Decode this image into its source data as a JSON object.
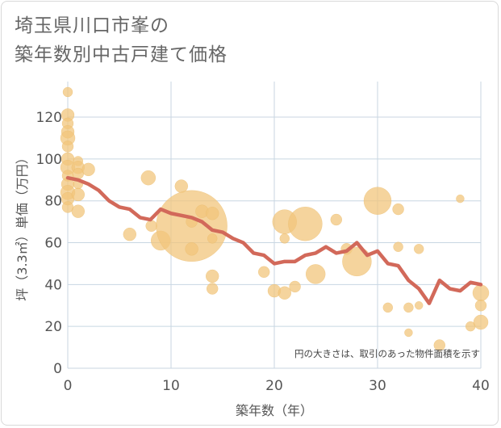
{
  "title_lines": [
    "埼玉県川口市峯の",
    "築年数別中古戸建て価格"
  ],
  "chart_data": {
    "type": "scatter",
    "title": "埼玉県川口市峯の築年数別中古戸建て価格",
    "xlabel": "築年数（年）",
    "ylabel": "坪（3.3㎡）単価（万円）",
    "xlim": [
      0,
      40
    ],
    "ylim": [
      0,
      137
    ],
    "xticks": [
      0,
      10,
      20,
      30,
      40
    ],
    "yticks": [
      0,
      20,
      40,
      60,
      80,
      100,
      120
    ],
    "grid": true,
    "note": "円の大きさは、取引のあった物件面積を示す",
    "colors": {
      "bubble": "#f2c57c",
      "line": "#d2695a",
      "grid": "#c8d6e2"
    },
    "points": [
      {
        "x": 0,
        "y": 132,
        "s": 6
      },
      {
        "x": 0,
        "y": 121,
        "s": 8
      },
      {
        "x": 0,
        "y": 117,
        "s": 7
      },
      {
        "x": 0,
        "y": 113,
        "s": 8
      },
      {
        "x": 0,
        "y": 110,
        "s": 9
      },
      {
        "x": 0,
        "y": 106,
        "s": 7
      },
      {
        "x": 0,
        "y": 100,
        "s": 8
      },
      {
        "x": 0,
        "y": 96,
        "s": 9
      },
      {
        "x": 0,
        "y": 92,
        "s": 7
      },
      {
        "x": 0,
        "y": 88,
        "s": 8
      },
      {
        "x": 0,
        "y": 84,
        "s": 9
      },
      {
        "x": 0,
        "y": 81,
        "s": 8
      },
      {
        "x": 0,
        "y": 77,
        "s": 7
      },
      {
        "x": 1,
        "y": 99,
        "s": 6
      },
      {
        "x": 1,
        "y": 96,
        "s": 8
      },
      {
        "x": 1,
        "y": 93,
        "s": 7
      },
      {
        "x": 1,
        "y": 88,
        "s": 6
      },
      {
        "x": 1,
        "y": 83,
        "s": 8
      },
      {
        "x": 1,
        "y": 75,
        "s": 8
      },
      {
        "x": 2,
        "y": 95,
        "s": 8
      },
      {
        "x": 6,
        "y": 64,
        "s": 8
      },
      {
        "x": 7.8,
        "y": 91,
        "s": 9
      },
      {
        "x": 8.1,
        "y": 68,
        "s": 7
      },
      {
        "x": 9,
        "y": 61,
        "s": 12
      },
      {
        "x": 11,
        "y": 87,
        "s": 8
      },
      {
        "x": 12,
        "y": 68,
        "s": 44
      },
      {
        "x": 12,
        "y": 57,
        "s": 8
      },
      {
        "x": 12,
        "y": 70,
        "s": 7
      },
      {
        "x": 13,
        "y": 75,
        "s": 8
      },
      {
        "x": 14,
        "y": 74,
        "s": 8
      },
      {
        "x": 14,
        "y": 62,
        "s": 6
      },
      {
        "x": 14,
        "y": 44,
        "s": 8
      },
      {
        "x": 14,
        "y": 38,
        "s": 7
      },
      {
        "x": 19,
        "y": 46,
        "s": 7
      },
      {
        "x": 20,
        "y": 37,
        "s": 8
      },
      {
        "x": 21,
        "y": 70,
        "s": 15
      },
      {
        "x": 21,
        "y": 62,
        "s": 6
      },
      {
        "x": 21,
        "y": 36,
        "s": 8
      },
      {
        "x": 22,
        "y": 39,
        "s": 7
      },
      {
        "x": 23,
        "y": 69,
        "s": 21
      },
      {
        "x": 24,
        "y": 45,
        "s": 12
      },
      {
        "x": 26,
        "y": 71,
        "s": 7
      },
      {
        "x": 27,
        "y": 57,
        "s": 7
      },
      {
        "x": 28,
        "y": 51,
        "s": 18
      },
      {
        "x": 30,
        "y": 80,
        "s": 17
      },
      {
        "x": 31,
        "y": 29,
        "s": 6
      },
      {
        "x": 32,
        "y": 76,
        "s": 7
      },
      {
        "x": 32,
        "y": 58,
        "s": 6
      },
      {
        "x": 33,
        "y": 29,
        "s": 6
      },
      {
        "x": 33,
        "y": 17,
        "s": 5
      },
      {
        "x": 34,
        "y": 57,
        "s": 6
      },
      {
        "x": 34,
        "y": 30,
        "s": 5
      },
      {
        "x": 36,
        "y": 11,
        "s": 7
      },
      {
        "x": 38,
        "y": 81,
        "s": 5
      },
      {
        "x": 39,
        "y": 20,
        "s": 6
      },
      {
        "x": 40,
        "y": 36,
        "s": 10
      },
      {
        "x": 40,
        "y": 22,
        "s": 9
      },
      {
        "x": 40,
        "y": 30,
        "s": 7
      }
    ],
    "trend": {
      "x": [
        0,
        1,
        2,
        3,
        4,
        5,
        6,
        7,
        8,
        9,
        10,
        11,
        12,
        13,
        14,
        15,
        16,
        17,
        18,
        19,
        20,
        21,
        22,
        23,
        24,
        25,
        26,
        27,
        28,
        29,
        30,
        31,
        32,
        33,
        34,
        35,
        36,
        37,
        38,
        39,
        40
      ],
      "y": [
        91,
        90,
        88,
        85,
        80,
        77,
        76,
        72,
        71,
        76,
        74,
        73,
        72,
        70,
        66,
        65,
        62,
        60,
        55,
        54,
        50,
        51,
        51,
        54,
        55,
        58,
        55,
        56,
        60,
        54,
        56,
        50,
        49,
        42,
        38,
        31,
        42,
        38,
        37,
        41,
        40
      ]
    }
  }
}
